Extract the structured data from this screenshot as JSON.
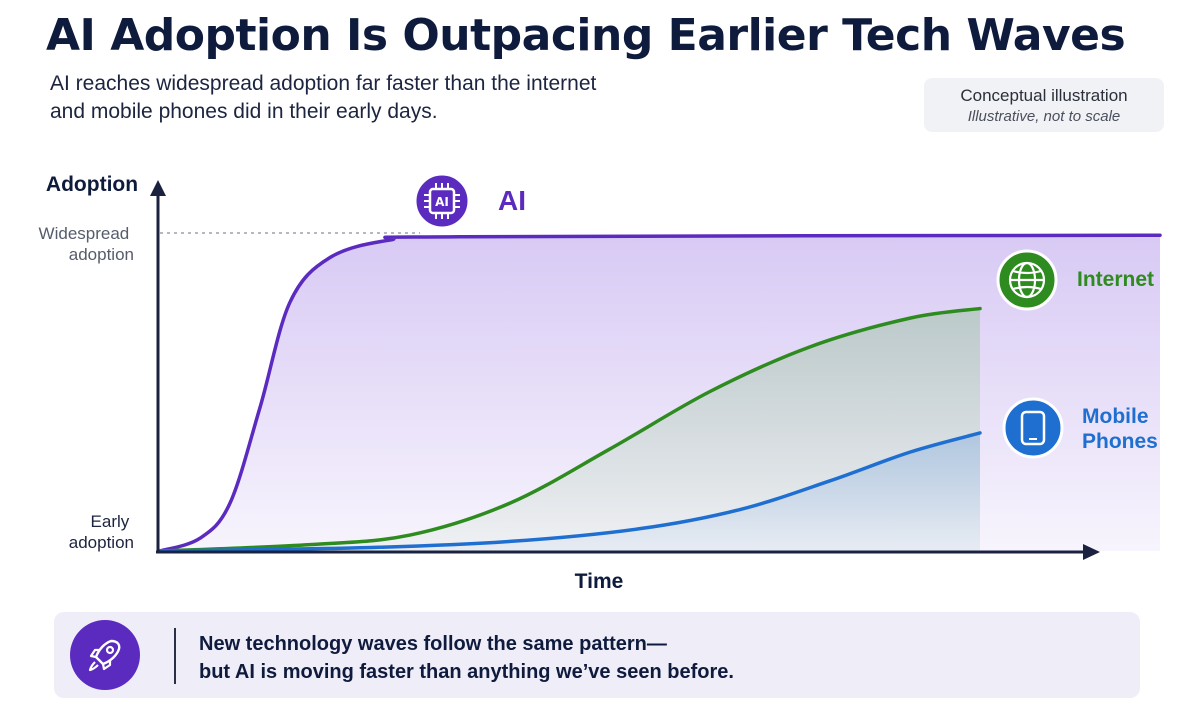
{
  "header": {
    "title": "AI Adoption Is Outpacing Earlier Tech Waves",
    "subtitle_line1": "AI reaches widespread adoption far faster than the internet",
    "subtitle_line2": "and mobile phones did in their early days.",
    "badge_main": "Conceptual illustration",
    "badge_sub": "Illustrative, not to scale"
  },
  "chart_data": {
    "type": "line",
    "ylabel": "Adoption",
    "xlabel": "Time",
    "y_ticks": [
      "Widespread adoption",
      "Early adoption"
    ],
    "xlim": [
      0,
      1
    ],
    "ylim": [
      0,
      1
    ],
    "grid": false,
    "legend": "end-of-line labels",
    "series": [
      {
        "name": "AI",
        "color": "#5b2bbf",
        "icon": "ai-chip-icon",
        "points": [
          [
            0,
            0
          ],
          [
            0.04,
            0.04
          ],
          [
            0.07,
            0.15
          ],
          [
            0.1,
            0.45
          ],
          [
            0.13,
            0.78
          ],
          [
            0.17,
            0.92
          ],
          [
            0.23,
            0.975
          ],
          [
            0.3,
            0.985
          ],
          [
            1.0,
            0.99
          ]
        ]
      },
      {
        "name": "Internet",
        "color": "#2e8b1f",
        "icon": "globe-icon",
        "points": [
          [
            0,
            0
          ],
          [
            0.15,
            0.02
          ],
          [
            0.25,
            0.05
          ],
          [
            0.35,
            0.15
          ],
          [
            0.45,
            0.32
          ],
          [
            0.55,
            0.5
          ],
          [
            0.65,
            0.64
          ],
          [
            0.75,
            0.73
          ],
          [
            0.82,
            0.76
          ]
        ]
      },
      {
        "name": "Mobile Phones",
        "color": "#1f6fd1",
        "icon": "mobile-phone-icon",
        "points": [
          [
            0,
            0
          ],
          [
            0.2,
            0.01
          ],
          [
            0.35,
            0.03
          ],
          [
            0.48,
            0.07
          ],
          [
            0.58,
            0.13
          ],
          [
            0.67,
            0.22
          ],
          [
            0.75,
            0.31
          ],
          [
            0.82,
            0.37
          ]
        ]
      }
    ]
  },
  "banner": {
    "line1": "New technology waves follow the same pattern—",
    "line2": "but AI is moving faster than anything we’ve seen before."
  }
}
